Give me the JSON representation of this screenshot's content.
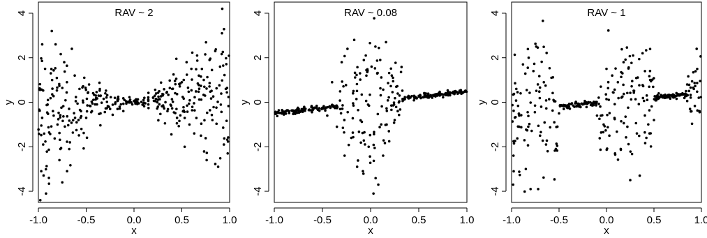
{
  "chart_data": [
    {
      "type": "scatter",
      "title": "RAV ~ 2",
      "xlabel": "x",
      "ylabel": "y",
      "xlim": [
        -1.0,
        1.0
      ],
      "ylim": [
        -4.5,
        4.5
      ],
      "xticks": [
        "-1.0",
        "-0.5",
        "0.0",
        "0.5",
        "1.0"
      ],
      "yticks": [
        "-4",
        "-2",
        "0",
        "2",
        "4"
      ],
      "xtick_values": [
        -1.0,
        -0.5,
        0.0,
        0.5,
        1.0
      ],
      "ytick_values": [
        -4,
        -2,
        0,
        2,
        4
      ],
      "grid": false,
      "pattern": "noise large at both ends, small near x=0",
      "points": [
        [
          -0.98,
          -4.4
        ],
        [
          -0.97,
          -3.1
        ],
        [
          -0.96,
          2.6
        ],
        [
          -0.95,
          -1.9
        ],
        [
          -0.93,
          1.5
        ],
        [
          -0.92,
          -4.1
        ],
        [
          -0.9,
          0.1
        ],
        [
          -0.89,
          -3.4
        ],
        [
          -0.87,
          1.3
        ],
        [
          -0.86,
          3.2
        ],
        [
          -0.84,
          -0.6
        ],
        [
          -0.82,
          2.6
        ],
        [
          -0.8,
          -1.0
        ],
        [
          -0.78,
          -2.6
        ],
        [
          -0.77,
          -2.1
        ],
        [
          -0.75,
          -3.6
        ],
        [
          -0.73,
          1.8
        ],
        [
          -0.7,
          -3.1
        ],
        [
          -0.67,
          -1.8
        ],
        [
          -0.65,
          2.4
        ],
        [
          -0.62,
          1.2
        ],
        [
          -0.6,
          -0.9
        ],
        [
          -0.57,
          0.6
        ],
        [
          -0.55,
          -1.2
        ],
        [
          -0.52,
          1.1
        ],
        [
          -0.5,
          -0.7
        ],
        [
          -0.47,
          0.8
        ],
        [
          -0.44,
          -0.4
        ],
        [
          -0.4,
          0.3
        ],
        [
          -0.35,
          -0.5
        ],
        [
          -0.3,
          0.4
        ],
        [
          -0.25,
          -0.3
        ],
        [
          -0.2,
          0.2
        ],
        [
          -0.15,
          -0.2
        ],
        [
          -0.1,
          0.1
        ],
        [
          -0.05,
          0.0
        ],
        [
          0.0,
          0.05
        ],
        [
          0.05,
          -0.05
        ],
        [
          0.1,
          0.1
        ],
        [
          0.15,
          -0.1
        ],
        [
          0.2,
          0.2
        ],
        [
          0.25,
          -0.2
        ],
        [
          0.3,
          0.3
        ],
        [
          0.35,
          -0.4
        ],
        [
          0.4,
          0.6
        ],
        [
          0.45,
          -0.7
        ],
        [
          0.5,
          0.9
        ],
        [
          0.53,
          -2.0
        ],
        [
          0.55,
          1.8
        ],
        [
          0.58,
          -1.0
        ],
        [
          0.6,
          1.5
        ],
        [
          0.63,
          -1.4
        ],
        [
          0.66,
          2.1
        ],
        [
          0.7,
          -1.5
        ],
        [
          0.73,
          1.0
        ],
        [
          0.76,
          -2.6
        ],
        [
          0.79,
          1.9
        ],
        [
          0.82,
          -0.8
        ],
        [
          0.85,
          2.3
        ],
        [
          0.88,
          -2.9
        ],
        [
          0.9,
          1.6
        ],
        [
          0.92,
          3.1
        ],
        [
          0.94,
          -1.9
        ],
        [
          0.96,
          0.6
        ],
        [
          0.98,
          -2.3
        ]
      ]
    },
    {
      "type": "scatter",
      "title": "RAV ~ 0.08",
      "xlabel": "x",
      "ylabel": "y",
      "xlim": [
        -1.0,
        1.0
      ],
      "ylim": [
        -4.5,
        4.5
      ],
      "xticks": [
        "-1.0",
        "-0.5",
        "0.0",
        "0.5",
        "1.0"
      ],
      "yticks": [
        "-4",
        "-2",
        "0",
        "2",
        "4"
      ],
      "xtick_values": [
        -1.0,
        -0.5,
        0.0,
        0.5,
        1.0
      ],
      "ytick_values": [
        -4,
        -2,
        0,
        2,
        4
      ],
      "grid": false,
      "pattern": "tight linear trend at both ends, large noise near x=0",
      "points": [
        [
          -0.98,
          -0.5
        ],
        [
          -0.9,
          -0.45
        ],
        [
          -0.8,
          -0.4
        ],
        [
          -0.7,
          -0.35
        ],
        [
          -0.6,
          -0.3
        ],
        [
          -0.5,
          -0.25
        ],
        [
          -0.45,
          -0.6
        ],
        [
          -0.4,
          0.9
        ],
        [
          -0.35,
          -1.1
        ],
        [
          -0.3,
          1.8
        ],
        [
          -0.27,
          -2.4
        ],
        [
          -0.24,
          2.4
        ],
        [
          -0.2,
          -1.6
        ],
        [
          -0.17,
          2.8
        ],
        [
          -0.14,
          -2.9
        ],
        [
          -0.11,
          1.3
        ],
        [
          -0.08,
          -3.1
        ],
        [
          -0.05,
          2.1
        ],
        [
          -0.02,
          -2.0
        ],
        [
          0.01,
          1.6
        ],
        [
          0.03,
          -4.1
        ],
        [
          0.05,
          2.5
        ],
        [
          0.08,
          -3.7
        ],
        [
          0.1,
          1.9
        ],
        [
          0.13,
          -2.4
        ],
        [
          0.16,
          2.7
        ],
        [
          0.19,
          -1.3
        ],
        [
          0.22,
          1.2
        ],
        [
          0.25,
          -0.8
        ],
        [
          0.3,
          0.3
        ],
        [
          0.4,
          0.2
        ],
        [
          0.5,
          0.25
        ],
        [
          0.6,
          0.3
        ],
        [
          0.7,
          0.35
        ],
        [
          0.8,
          0.4
        ],
        [
          0.9,
          0.45
        ],
        [
          0.98,
          0.5
        ]
      ]
    },
    {
      "type": "scatter",
      "title": "RAV ~ 1",
      "xlabel": "x",
      "ylabel": "y",
      "xlim": [
        -1.0,
        1.0
      ],
      "ylim": [
        -4.5,
        4.5
      ],
      "xticks": [
        "-1.0",
        "-0.5",
        "0.0",
        "0.5",
        "1.0"
      ],
      "yticks": [
        "-4",
        "-2",
        "0",
        "2",
        "4"
      ],
      "xtick_values": [
        -1.0,
        -0.5,
        0.0,
        0.5,
        1.0
      ],
      "ytick_values": [
        -4,
        -2,
        0,
        2,
        4
      ],
      "grid": false,
      "pattern": "alternating bands of noise and tight trend",
      "points": [
        [
          -0.98,
          -2.4
        ],
        [
          -0.95,
          0.6
        ],
        [
          -0.92,
          -1.1
        ],
        [
          -0.88,
          1.7
        ],
        [
          -0.85,
          -3.0
        ],
        [
          -0.82,
          2.0
        ],
        [
          -0.8,
          -3.9
        ],
        [
          -0.77,
          1.4
        ],
        [
          -0.74,
          2.5
        ],
        [
          -0.72,
          -3.9
        ],
        [
          -0.7,
          -1.5
        ],
        [
          -0.66,
          0.9
        ],
        [
          -0.62,
          -2.2
        ],
        [
          -0.58,
          1.1
        ],
        [
          -0.55,
          -0.9
        ],
        [
          -0.5,
          -0.5
        ],
        [
          -0.45,
          -0.3
        ],
        [
          -0.4,
          -0.2
        ],
        [
          -0.35,
          -0.15
        ],
        [
          -0.3,
          -0.1
        ],
        [
          -0.25,
          -0.1
        ],
        [
          -0.2,
          -0.05
        ],
        [
          -0.15,
          -0.05
        ],
        [
          -0.1,
          -0.6
        ],
        [
          -0.06,
          0.7
        ],
        [
          -0.03,
          -1.0
        ],
        [
          0.0,
          1.5
        ],
        [
          0.03,
          -1.5
        ],
        [
          0.06,
          1.2
        ],
        [
          0.09,
          -2.3
        ],
        [
          0.12,
          0.9
        ],
        [
          0.15,
          -2.1
        ],
        [
          0.18,
          1.8
        ],
        [
          0.22,
          -1.1
        ],
        [
          0.25,
          -3.5
        ],
        [
          0.28,
          2.1
        ],
        [
          0.32,
          -1.4
        ],
        [
          0.35,
          -3.3
        ],
        [
          0.38,
          2.2
        ],
        [
          0.42,
          -1.6
        ],
        [
          0.46,
          1.0
        ],
        [
          0.5,
          -0.8
        ],
        [
          0.55,
          0.4
        ],
        [
          0.6,
          0.3
        ],
        [
          0.65,
          0.32
        ],
        [
          0.7,
          0.35
        ],
        [
          0.75,
          0.37
        ],
        [
          0.8,
          0.4
        ],
        [
          0.85,
          0.8
        ],
        [
          0.88,
          -0.3
        ],
        [
          0.92,
          0.6
        ],
        [
          0.95,
          2.4
        ],
        [
          0.98,
          -0.4
        ]
      ]
    }
  ]
}
